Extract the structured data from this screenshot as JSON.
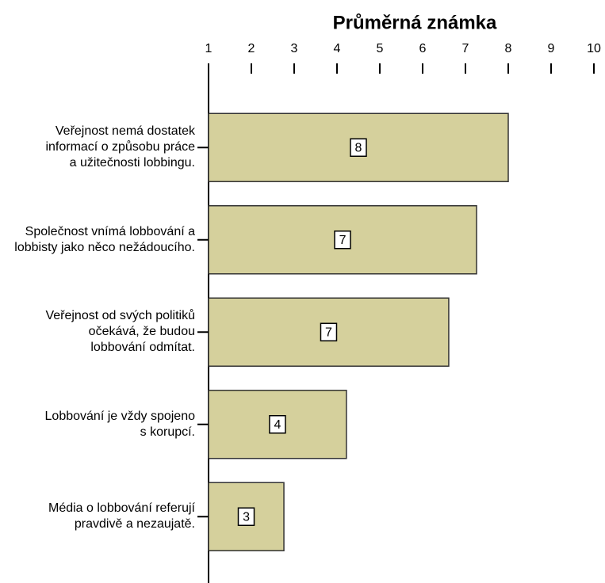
{
  "chart_data": {
    "type": "bar",
    "orientation": "horizontal",
    "title": "Průměrná známka",
    "categories": [
      "Veřejnost nemá dostatek informací o způsobu práce a užitečnosti lobbingu.",
      "Společnost vnímá lobbování a lobbisty jako něco nežádoucího.",
      "Veřejnost od svých politiků očekává, že budou lobbování odmítat.",
      "Lobbování je vždy spojeno s korupcí.",
      "Média o lobbování referují pravdivě a nezaujatě."
    ],
    "values": [
      8.0,
      7.26,
      6.61,
      4.22,
      2.76
    ],
    "value_labels": [
      "8",
      "7",
      "7",
      "4",
      "3"
    ],
    "color": "#d5d09c",
    "xlim": [
      1,
      10
    ],
    "xticks": [
      1,
      2,
      3,
      4,
      5,
      6,
      7,
      8,
      9,
      10
    ]
  }
}
